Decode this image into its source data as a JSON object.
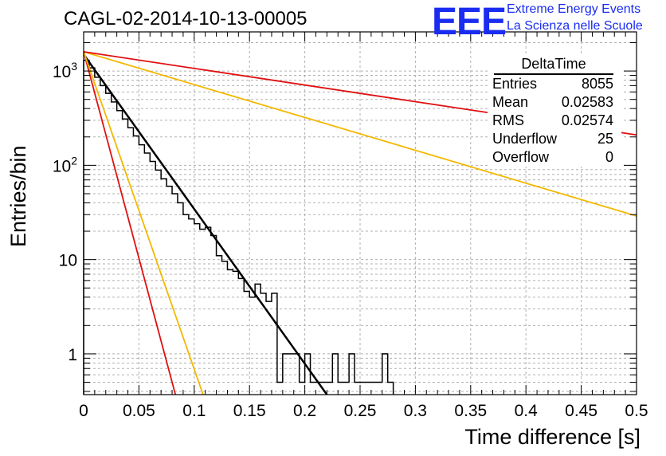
{
  "header": {
    "title": "CAGL-02-2014-10-13-00005",
    "logo_text": "EEE",
    "logo_line1": "Extreme Energy Events",
    "logo_line2": "La Scienza nelle Scuole"
  },
  "stats_box": {
    "title": "DeltaTime",
    "rows": [
      {
        "label": "Entries",
        "value": "8055"
      },
      {
        "label": "Mean",
        "value": "0.02583"
      },
      {
        "label": "RMS",
        "value": "0.02574"
      },
      {
        "label": "Underflow",
        "value": "25"
      },
      {
        "label": "Overflow",
        "value": "0"
      }
    ]
  },
  "colors": {
    "histogram": "#000000",
    "fit": "#000000",
    "red_reference": "#e01010",
    "orange_reference": "#f4b800",
    "grid": "#b0b0b0"
  },
  "chart_data": {
    "type": "line",
    "xlabel": "Time difference [s]",
    "ylabel": "Entries/bin",
    "xlim": [
      0,
      0.5
    ],
    "ylim": [
      0.37,
      2600
    ],
    "yscale": "log",
    "grid": true,
    "x_ticks": [
      "0",
      "0.05",
      "0.1",
      "0.15",
      "0.2",
      "0.25",
      "0.3",
      "0.35",
      "0.4",
      "0.45",
      "0.5"
    ],
    "y_ticks": [
      {
        "value": 1,
        "label": "1"
      },
      {
        "value": 10,
        "label": "10"
      },
      {
        "value": 100,
        "label": "10^2"
      },
      {
        "value": 1000,
        "label": "10^3"
      }
    ],
    "histogram": {
      "bin_width": 0.005,
      "values": [
        1300,
        1080,
        860,
        700,
        580,
        470,
        380,
        310,
        250,
        205,
        165,
        135,
        110,
        89,
        72,
        60,
        50,
        40,
        30,
        27,
        24,
        21,
        22,
        18,
        11,
        9.6,
        7.8,
        7.5,
        6.3,
        4.6,
        4.0,
        5.5,
        4.4,
        3.6,
        4.4,
        0.5,
        1,
        1,
        1,
        0.5,
        1,
        0.5,
        0.5,
        0.5,
        0.5,
        1,
        0.5,
        0.5,
        1,
        0.5,
        0.5,
        0.5,
        0.5,
        0.5,
        1,
        0.5
      ]
    },
    "series": [
      {
        "kind": "fit",
        "color": "black",
        "points": [
          [
            0.0,
            1500
          ],
          [
            0.22,
            0.37
          ]
        ]
      },
      {
        "kind": "reference",
        "color": "red",
        "points": [
          [
            0.0,
            1600
          ],
          [
            0.083,
            0.37
          ]
        ]
      },
      {
        "kind": "reference",
        "color": "orange",
        "points": [
          [
            0.0,
            1600
          ],
          [
            0.108,
            0.37
          ]
        ]
      },
      {
        "kind": "reference",
        "color": "orange",
        "points": [
          [
            0.0,
            1600
          ],
          [
            0.5,
            29
          ]
        ]
      },
      {
        "kind": "reference",
        "color": "red",
        "points": [
          [
            0.0,
            1600
          ],
          [
            0.5,
            210
          ]
        ]
      }
    ]
  }
}
